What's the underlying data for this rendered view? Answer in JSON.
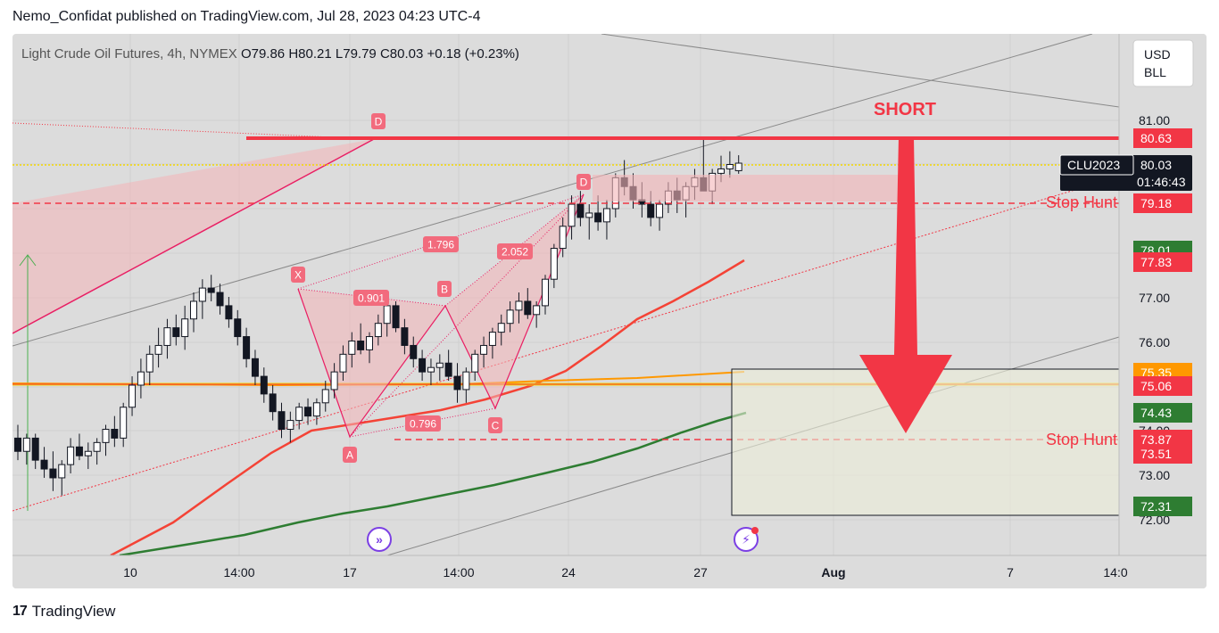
{
  "header": {
    "publisher_line": "Nemo_Confidat published on TradingView.com, Jul 28, 2023 04:23 UTC-4"
  },
  "footer": {
    "brand": "TradingView",
    "logo_glyph": "17"
  },
  "chart_data": {
    "type": "candlestick",
    "title": "Light Crude Oil Futures, 4h, NYMEX",
    "ohlc": {
      "o_label": "O",
      "o": "79.86",
      "h_label": "H",
      "h": "80.21",
      "l_label": "L",
      "l": "79.79",
      "c_label": "C",
      "c": "80.03",
      "change": "+0.18 (+0.23%)"
    },
    "currency": [
      "USD",
      "BLL"
    ],
    "y_range": [
      71.2,
      82.9
    ],
    "y_ticks": [
      "81.00",
      "77.00",
      "76.00",
      "74.00",
      "73.00",
      "72.00"
    ],
    "x_ticks": [
      "10",
      "14:00",
      "17",
      "14:00",
      "24",
      "27",
      "Aug",
      "7",
      "14:0"
    ],
    "price_labels": {
      "level_8063": "80.63",
      "symbol": "CLU2023",
      "last_price": "80.03",
      "countdown": "01:46:43",
      "level_7918": "79.18",
      "hidden_7801": "78.01",
      "ma_red": "77.83",
      "ma_orange": "75.35",
      "level_7506": "75.06",
      "ma_green": "74.43",
      "level_7387": "73.87",
      "level_7351": "73.51",
      "level_7231": "72.31"
    },
    "annotations": {
      "short": "SHORT",
      "stop_hunt_upper": "Stop Hunt",
      "stop_hunt_lower": "Stop Hunt"
    },
    "harmonic_pattern": {
      "points": [
        {
          "label": "X",
          "price": 77.35
        },
        {
          "label": "A",
          "price": 73.85
        },
        {
          "label": "B",
          "price": 76.85
        },
        {
          "label": "C",
          "price": 74.5
        },
        {
          "label": "D",
          "price": 79.45
        }
      ],
      "ratios": [
        "0.901",
        "1.796",
        "2.052",
        "0.796"
      ],
      "prior_d_label": "D"
    },
    "candles": [
      [
        73.8,
        74.1,
        73.3,
        73.5
      ],
      [
        73.5,
        73.9,
        73.2,
        73.8
      ],
      [
        73.8,
        73.9,
        73.1,
        73.3
      ],
      [
        73.3,
        73.6,
        72.9,
        73.1
      ],
      [
        73.1,
        73.5,
        72.6,
        72.9
      ],
      [
        72.9,
        73.3,
        72.5,
        73.2
      ],
      [
        73.2,
        73.8,
        73.0,
        73.6
      ],
      [
        73.6,
        73.9,
        73.3,
        73.4
      ],
      [
        73.4,
        73.7,
        73.1,
        73.5
      ],
      [
        73.5,
        73.8,
        73.2,
        73.7
      ],
      [
        73.7,
        74.1,
        73.4,
        74.0
      ],
      [
        74.0,
        74.3,
        73.6,
        73.8
      ],
      [
        73.8,
        74.6,
        73.6,
        74.5
      ],
      [
        74.5,
        75.2,
        74.3,
        75.0
      ],
      [
        75.0,
        75.6,
        74.7,
        75.3
      ],
      [
        75.3,
        75.9,
        75.0,
        75.7
      ],
      [
        75.7,
        76.3,
        75.4,
        75.9
      ],
      [
        75.9,
        76.5,
        75.6,
        76.3
      ],
      [
        76.3,
        76.6,
        75.9,
        76.1
      ],
      [
        76.1,
        76.8,
        75.8,
        76.5
      ],
      [
        76.5,
        77.1,
        76.2,
        76.9
      ],
      [
        76.9,
        77.4,
        76.5,
        77.2
      ],
      [
        77.2,
        77.5,
        76.9,
        77.1
      ],
      [
        77.1,
        77.3,
        76.6,
        76.8
      ],
      [
        76.8,
        77.0,
        76.3,
        76.5
      ],
      [
        76.5,
        76.7,
        75.9,
        76.1
      ],
      [
        76.1,
        76.3,
        75.4,
        75.6
      ],
      [
        75.6,
        75.8,
        75.0,
        75.2
      ],
      [
        75.2,
        75.4,
        74.6,
        74.8
      ],
      [
        74.8,
        75.0,
        74.2,
        74.4
      ],
      [
        74.4,
        74.6,
        73.8,
        74.0
      ],
      [
        74.0,
        74.4,
        73.7,
        74.2
      ],
      [
        74.2,
        74.6,
        74.0,
        74.5
      ],
      [
        74.5,
        74.7,
        74.1,
        74.3
      ],
      [
        74.3,
        74.7,
        74.1,
        74.6
      ],
      [
        74.6,
        75.1,
        74.4,
        74.9
      ],
      [
        74.9,
        75.5,
        74.7,
        75.3
      ],
      [
        75.3,
        75.9,
        75.1,
        75.7
      ],
      [
        75.7,
        76.2,
        75.4,
        76.0
      ],
      [
        76.0,
        76.4,
        75.7,
        75.8
      ],
      [
        75.8,
        76.2,
        75.5,
        76.1
      ],
      [
        76.1,
        76.6,
        75.9,
        76.4
      ],
      [
        76.4,
        76.9,
        76.1,
        76.8
      ],
      [
        76.8,
        76.9,
        76.2,
        76.3
      ],
      [
        76.3,
        76.5,
        75.7,
        75.9
      ],
      [
        75.9,
        76.1,
        75.4,
        75.6
      ],
      [
        75.6,
        75.8,
        75.1,
        75.3
      ],
      [
        75.3,
        75.6,
        75.0,
        75.4
      ],
      [
        75.4,
        75.7,
        75.1,
        75.5
      ],
      [
        75.5,
        75.8,
        75.1,
        75.2
      ],
      [
        75.2,
        75.5,
        74.6,
        74.9
      ],
      [
        74.9,
        75.4,
        74.6,
        75.3
      ],
      [
        75.3,
        75.8,
        75.1,
        75.7
      ],
      [
        75.7,
        76.1,
        75.4,
        75.9
      ],
      [
        75.9,
        76.3,
        75.6,
        76.2
      ],
      [
        76.2,
        76.6,
        75.9,
        76.4
      ],
      [
        76.4,
        76.9,
        76.2,
        76.7
      ],
      [
        76.7,
        77.1,
        76.4,
        76.9
      ],
      [
        76.9,
        77.2,
        76.5,
        76.6
      ],
      [
        76.6,
        76.9,
        76.3,
        76.8
      ],
      [
        76.8,
        77.5,
        76.6,
        77.4
      ],
      [
        77.4,
        78.2,
        77.2,
        78.1
      ],
      [
        78.1,
        78.8,
        77.9,
        78.6
      ],
      [
        78.6,
        79.3,
        78.3,
        79.1
      ],
      [
        79.1,
        79.4,
        78.6,
        78.8
      ],
      [
        78.8,
        79.1,
        78.3,
        78.9
      ],
      [
        78.9,
        79.3,
        78.5,
        78.7
      ],
      [
        78.7,
        79.2,
        78.3,
        79.0
      ],
      [
        79.0,
        79.8,
        78.8,
        79.7
      ],
      [
        79.7,
        80.1,
        79.3,
        79.5
      ],
      [
        79.5,
        79.8,
        79.0,
        79.2
      ],
      [
        79.2,
        79.6,
        78.8,
        79.1
      ],
      [
        79.1,
        79.4,
        78.6,
        78.8
      ],
      [
        78.8,
        79.2,
        78.5,
        79.1
      ],
      [
        79.1,
        79.6,
        78.9,
        79.4
      ],
      [
        79.4,
        79.7,
        78.9,
        79.2
      ],
      [
        79.2,
        79.6,
        78.8,
        79.5
      ],
      [
        79.5,
        79.9,
        79.2,
        79.7
      ],
      [
        79.7,
        80.6,
        79.4,
        79.4
      ],
      [
        79.4,
        79.9,
        79.1,
        79.8
      ],
      [
        79.8,
        80.2,
        79.6,
        79.9
      ],
      [
        79.9,
        80.3,
        79.7,
        80.0
      ],
      [
        79.86,
        80.21,
        79.79,
        80.03
      ]
    ]
  }
}
